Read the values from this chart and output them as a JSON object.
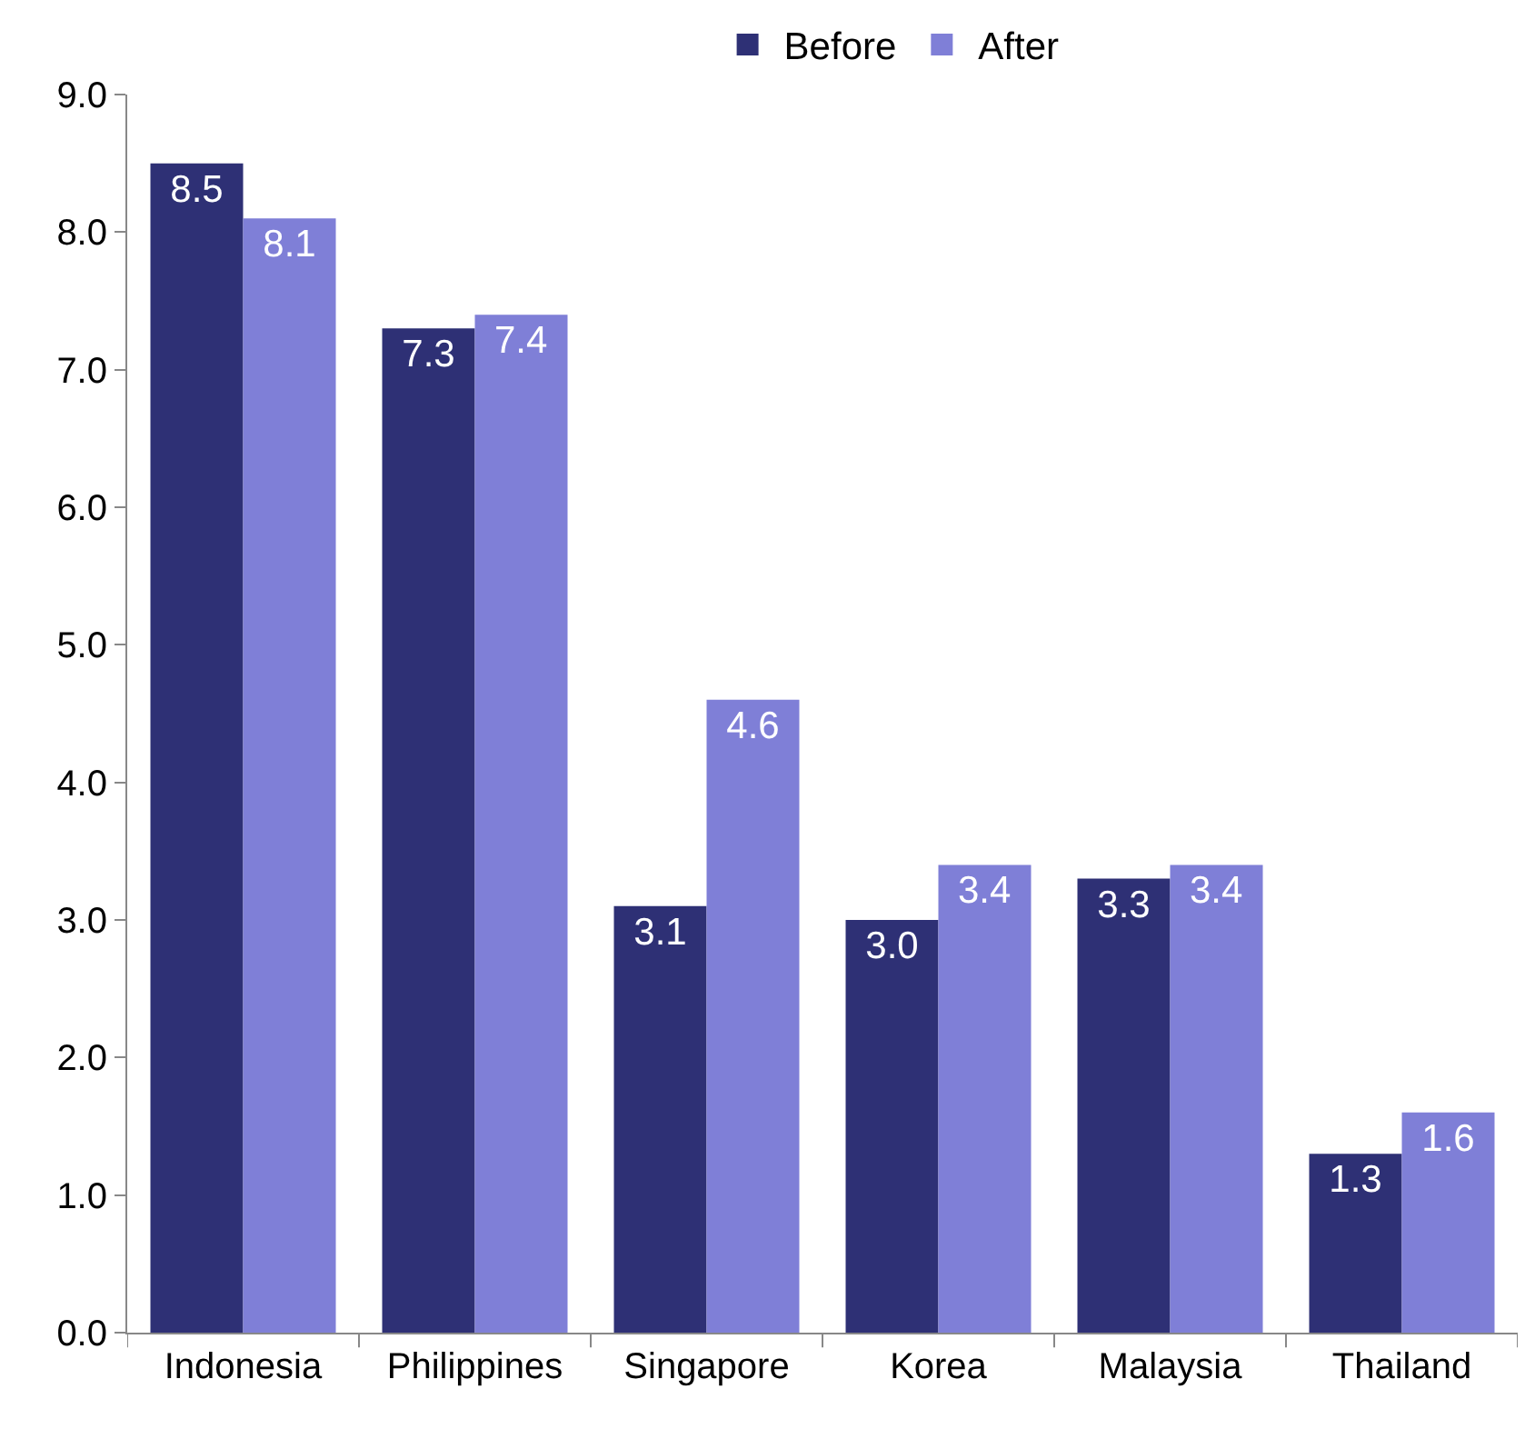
{
  "chart_data": {
    "type": "bar",
    "categories": [
      "Indonesia",
      "Philippines",
      "Singapore",
      "Korea",
      "Malaysia",
      "Thailand"
    ],
    "series": [
      {
        "name": "Before",
        "color": "#2e3075",
        "values": [
          8.5,
          7.3,
          3.1,
          3.0,
          3.3,
          1.3
        ],
        "value_labels": [
          "8.5",
          "7.3",
          "3.1",
          "3.0",
          "3.3",
          "1.3"
        ]
      },
      {
        "name": "After",
        "color": "#7f7fd7",
        "values": [
          8.1,
          7.4,
          4.6,
          3.4,
          3.4,
          1.6
        ],
        "value_labels": [
          "8.1",
          "7.4",
          "4.6",
          "3.4",
          "3.4",
          "1.6"
        ]
      }
    ],
    "ylim": [
      0,
      9
    ],
    "yticks": [
      {
        "value": 0,
        "label": "0.0"
      },
      {
        "value": 1,
        "label": "1.0"
      },
      {
        "value": 2,
        "label": "2.0"
      },
      {
        "value": 3,
        "label": "3.0"
      },
      {
        "value": 4,
        "label": "4.0"
      },
      {
        "value": 5,
        "label": "5.0"
      },
      {
        "value": 6,
        "label": "6.0"
      },
      {
        "value": 7,
        "label": "7.0"
      },
      {
        "value": 8,
        "label": "8.0"
      },
      {
        "value": 9,
        "label": "9.0"
      }
    ],
    "grid": false,
    "legend": "top"
  }
}
